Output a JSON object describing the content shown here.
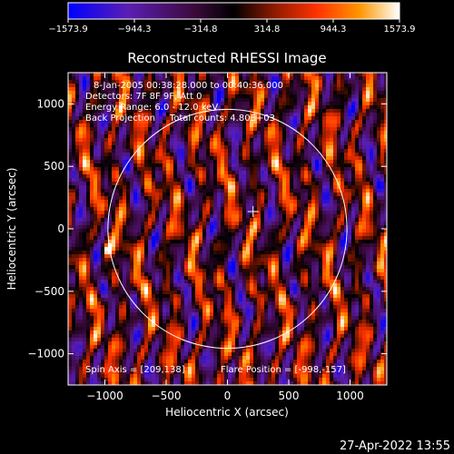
{
  "chart_data": {
    "type": "heatmap",
    "title": "Reconstructed RHESSI Image",
    "xlabel": "Heliocentric X (arcsec)",
    "ylabel": "Heliocentric Y (arcsec)",
    "xlim": [
      -1300,
      1300
    ],
    "ylim": [
      -1250,
      1250
    ],
    "x_ticks": [
      -1000,
      -500,
      0,
      500,
      1000
    ],
    "y_ticks": [
      -1000,
      -500,
      0,
      500,
      1000
    ],
    "x_tick_labels": [
      "−1000",
      "−500",
      "0",
      "500",
      "1000"
    ],
    "y_tick_labels": [
      "−1000",
      "−500",
      "0",
      "500",
      "1000"
    ],
    "colorbar": {
      "min": -1573.9,
      "max": 1573.9,
      "ticks": [
        -1573.9,
        -944.3,
        -314.8,
        314.8,
        944.3,
        1573.9
      ],
      "tick_labels": [
        "−1573.9",
        "−944.3",
        "−314.8",
        "314.8",
        "944.3",
        "1573.9"
      ],
      "colors": [
        "#0000ff",
        "#5a1eb4",
        "#3c0a3c",
        "#000000",
        "#8c1a00",
        "#ff3200",
        "#ff9600",
        "#ffffff"
      ]
    },
    "annotations": [
      "8-Jan-2005 00:38:28.000 to 00:40:36.000",
      "Detectors: 7F 8F 9F, Att 0",
      "Energy Range: 6.0 - 12.0 keV",
      "Back Projection     Total counts: 4.80E+03"
    ],
    "spin_axis": "Spin Axis = [209,138]",
    "flare_position": "Flare Position = [-998,-157]",
    "solar_limb": {
      "center": [
        0,
        0
      ],
      "radius": 975
    },
    "marker": {
      "x": 209,
      "y": 138,
      "symbol": "+"
    },
    "timestamp": "27-Apr-2022 13:55"
  }
}
